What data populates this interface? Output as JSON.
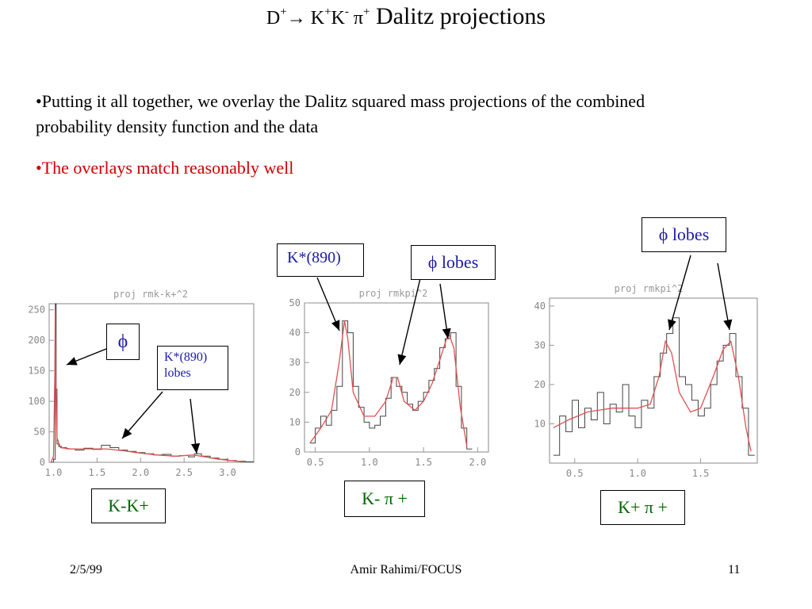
{
  "title": {
    "d": "D",
    "sup1": "+",
    "arrow": "→",
    "k1": " K",
    "sup2": "+",
    "k2": "K",
    "sup3": "-",
    "pi": " π",
    "sup4": "+",
    "text": " Dalitz projections"
  },
  "bullets": [
    "•Putting it all together, we overlay the Dalitz squared mass projections of the combined probability density function and the data",
    "•The overlays match reasonably well"
  ],
  "annotations": {
    "phi": "ϕ",
    "kstar_lobes_1": "K*(890)",
    "kstar_lobes_2": "lobes",
    "kstar": "K*(890)",
    "phi_lobes_1": "ϕ lobes",
    "phi_lobes_2": "ϕ lobes"
  },
  "process_labels": [
    "K-K+",
    "K- π +",
    "K+ π +"
  ],
  "footer": {
    "date": "2/5/99",
    "author": "Amir Rahimi/FOCUS",
    "page": "11"
  },
  "colors": {
    "histogram": "#444444",
    "fit": "#e05050",
    "bullet_red": "#cc0000",
    "annotation": "#1a1aa6",
    "process": "#006600"
  },
  "chart_data": [
    {
      "type": "line",
      "title": "proj rmk-k+^2",
      "xlim": [
        0.95,
        3.3
      ],
      "ylim": [
        0,
        260
      ],
      "xticks": [
        1.0,
        1.5,
        2.0,
        2.5,
        3.0
      ],
      "xtick_labels": [
        "1.0",
        "1.5",
        "2.0",
        "2.5",
        "3.0"
      ],
      "yticks": [
        0,
        50,
        100,
        150,
        200,
        250
      ],
      "ytick_labels": [
        "0",
        "50",
        "100",
        "150",
        "200",
        "250"
      ],
      "series": [
        {
          "kind": "histogram",
          "x": [
            0.97,
            1.0,
            1.02,
            1.03,
            1.04,
            1.06,
            1.09,
            1.15,
            1.25,
            1.35,
            1.45,
            1.55,
            1.65,
            1.75,
            1.85,
            1.95,
            2.05,
            2.15,
            2.25,
            2.35,
            2.45,
            2.55,
            2.62,
            2.7,
            2.8,
            2.9,
            3.0,
            3.1,
            3.2
          ],
          "y": [
            0,
            5,
            260,
            120,
            30,
            26,
            24,
            22,
            20,
            23,
            21,
            28,
            24,
            20,
            18,
            16,
            14,
            12,
            13,
            10,
            11,
            9,
            14,
            10,
            7,
            5,
            3,
            2,
            1
          ]
        },
        {
          "kind": "fit",
          "x": [
            0.97,
            1.0,
            1.015,
            1.02,
            1.025,
            1.04,
            1.08,
            1.2,
            1.4,
            1.6,
            1.8,
            2.0,
            2.2,
            2.4,
            2.6,
            2.7,
            2.9,
            3.1,
            3.2
          ],
          "y": [
            0,
            10,
            140,
            250,
            140,
            40,
            24,
            22,
            22,
            22,
            19,
            15,
            12,
            10,
            12,
            10,
            5,
            2,
            1
          ]
        }
      ]
    },
    {
      "type": "line",
      "title": "proj rmkpi^2",
      "xlim": [
        0.4,
        2.1
      ],
      "ylim": [
        0,
        50
      ],
      "xticks": [
        0.5,
        1.0,
        1.5,
        2.0
      ],
      "xtick_labels": [
        "0.5",
        "1.0",
        "1.5",
        "2.0"
      ],
      "yticks": [
        0,
        10,
        20,
        30,
        40,
        50
      ],
      "ytick_labels": [
        "0",
        "10",
        "20",
        "30",
        "40",
        "50"
      ],
      "series": [
        {
          "kind": "histogram",
          "x": [
            0.45,
            0.5,
            0.55,
            0.6,
            0.65,
            0.7,
            0.75,
            0.8,
            0.85,
            0.9,
            0.95,
            1.0,
            1.05,
            1.1,
            1.15,
            1.2,
            1.25,
            1.3,
            1.35,
            1.4,
            1.45,
            1.5,
            1.55,
            1.6,
            1.65,
            1.7,
            1.75,
            1.8,
            1.85,
            1.9
          ],
          "y": [
            3,
            8,
            12,
            9,
            14,
            22,
            44,
            40,
            22,
            15,
            10,
            8,
            9,
            12,
            18,
            25,
            22,
            20,
            16,
            14,
            17,
            20,
            24,
            28,
            35,
            38,
            40,
            22,
            8,
            1
          ]
        },
        {
          "kind": "fit",
          "x": [
            0.45,
            0.55,
            0.65,
            0.72,
            0.77,
            0.8,
            0.85,
            0.95,
            1.05,
            1.15,
            1.22,
            1.26,
            1.32,
            1.42,
            1.5,
            1.58,
            1.66,
            1.73,
            1.78,
            1.84,
            1.9
          ],
          "y": [
            3,
            8,
            14,
            30,
            44,
            38,
            20,
            12,
            12,
            17,
            25,
            25,
            17,
            14,
            17,
            23,
            32,
            40,
            35,
            15,
            2
          ]
        }
      ]
    },
    {
      "type": "line",
      "title": "proj rmkpi^2",
      "xlim": [
        0.3,
        1.95
      ],
      "ylim": [
        0,
        42
      ],
      "xticks": [
        0.5,
        1.0,
        1.5
      ],
      "xtick_labels": [
        "0.5",
        "1.0",
        "1.5"
      ],
      "yticks": [
        10,
        20,
        30,
        40
      ],
      "ytick_labels": [
        "10",
        "20",
        "30",
        "40"
      ],
      "series": [
        {
          "kind": "histogram",
          "x": [
            0.33,
            0.38,
            0.43,
            0.48,
            0.53,
            0.58,
            0.63,
            0.68,
            0.73,
            0.78,
            0.83,
            0.88,
            0.93,
            0.98,
            1.03,
            1.08,
            1.13,
            1.18,
            1.23,
            1.28,
            1.33,
            1.38,
            1.43,
            1.48,
            1.53,
            1.58,
            1.63,
            1.68,
            1.73,
            1.78,
            1.83,
            1.88
          ],
          "y": [
            2,
            12,
            8,
            16,
            9,
            14,
            11,
            18,
            10,
            15,
            13,
            20,
            12,
            9,
            16,
            14,
            22,
            28,
            33,
            37,
            22,
            20,
            16,
            12,
            14,
            20,
            26,
            30,
            33,
            22,
            14,
            2
          ]
        },
        {
          "kind": "fit",
          "x": [
            0.33,
            0.45,
            0.6,
            0.8,
            1.0,
            1.1,
            1.17,
            1.22,
            1.27,
            1.33,
            1.42,
            1.5,
            1.6,
            1.68,
            1.74,
            1.8,
            1.86,
            1.9
          ],
          "y": [
            9,
            11,
            13,
            14,
            14,
            15,
            22,
            31,
            28,
            18,
            13,
            14,
            22,
            29,
            31,
            22,
            9,
            3
          ]
        }
      ]
    }
  ]
}
